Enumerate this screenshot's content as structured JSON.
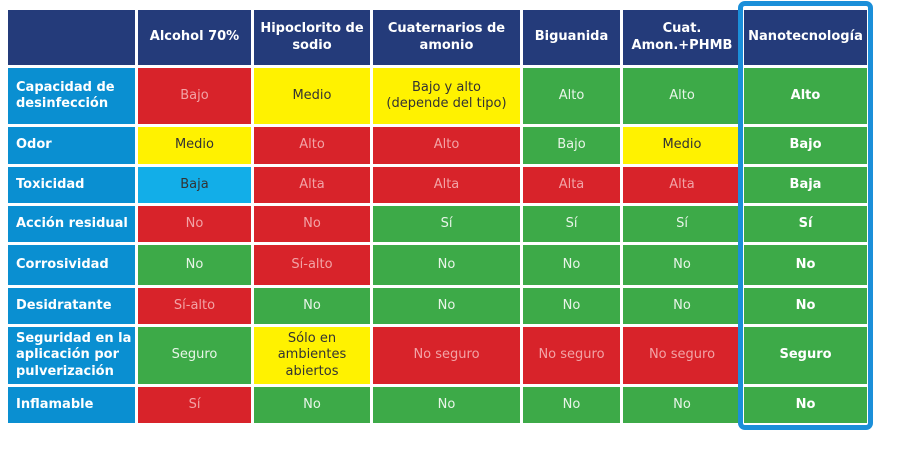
{
  "colors": {
    "header": "#243b7a",
    "row_label": "#0a8fd1",
    "red": "#d8232a",
    "green": "#3daa48",
    "yellow": "#fff200",
    "blue": "#12aee8",
    "nano_frame": "#1b8fd9"
  },
  "columns": [
    "Alcohol 70%",
    "Hipoclorito de sodio",
    "Cuaternarios de amonio",
    "Biguanida",
    "Cuat. Amon.+PHMB",
    "Nanotecnología"
  ],
  "rows": [
    {
      "label": "Capacidad de desinfección",
      "cells": [
        {
          "text": "Bajo",
          "color": "red"
        },
        {
          "text": "Medio",
          "color": "yellow"
        },
        {
          "text": "Bajo y alto (depende del tipo)",
          "color": "yellow"
        },
        {
          "text": "Alto",
          "color": "green"
        },
        {
          "text": "Alto",
          "color": "green"
        },
        {
          "text": "Alto",
          "color": "green"
        }
      ]
    },
    {
      "label": "Odor",
      "cells": [
        {
          "text": "Medio",
          "color": "yellow"
        },
        {
          "text": "Alto",
          "color": "red"
        },
        {
          "text": "Alto",
          "color": "red"
        },
        {
          "text": "Bajo",
          "color": "green"
        },
        {
          "text": "Medio",
          "color": "yellow"
        },
        {
          "text": "Bajo",
          "color": "green"
        }
      ]
    },
    {
      "label": "Toxicidad",
      "cells": [
        {
          "text": "Baja",
          "color": "blue"
        },
        {
          "text": "Alta",
          "color": "red"
        },
        {
          "text": "Alta",
          "color": "red"
        },
        {
          "text": "Alta",
          "color": "red"
        },
        {
          "text": "Alta",
          "color": "red"
        },
        {
          "text": "Baja",
          "color": "green"
        }
      ]
    },
    {
      "label": "Acción residual",
      "cells": [
        {
          "text": "No",
          "color": "red"
        },
        {
          "text": "No",
          "color": "red"
        },
        {
          "text": "Sí",
          "color": "green"
        },
        {
          "text": "Sí",
          "color": "green"
        },
        {
          "text": "Sí",
          "color": "green"
        },
        {
          "text": "Sí",
          "color": "green"
        }
      ]
    },
    {
      "label": "Corrosividad",
      "cells": [
        {
          "text": "No",
          "color": "green"
        },
        {
          "text": "Sí-alto",
          "color": "red"
        },
        {
          "text": "No",
          "color": "green"
        },
        {
          "text": "No",
          "color": "green"
        },
        {
          "text": "No",
          "color": "green"
        },
        {
          "text": "No",
          "color": "green"
        }
      ]
    },
    {
      "label": "Desidratante",
      "cells": [
        {
          "text": "Sí-alto",
          "color": "red"
        },
        {
          "text": "No",
          "color": "green"
        },
        {
          "text": "No",
          "color": "green"
        },
        {
          "text": "No",
          "color": "green"
        },
        {
          "text": "No",
          "color": "green"
        },
        {
          "text": "No",
          "color": "green"
        }
      ]
    },
    {
      "label": "Seguridad en la aplicación por pulverización",
      "cells": [
        {
          "text": "Seguro",
          "color": "green"
        },
        {
          "text": "Sólo en ambientes abiertos",
          "color": "yellow"
        },
        {
          "text": "No seguro",
          "color": "red"
        },
        {
          "text": "No seguro",
          "color": "red"
        },
        {
          "text": "No seguro",
          "color": "red"
        },
        {
          "text": "Seguro",
          "color": "green"
        }
      ]
    },
    {
      "label": "Inflamable",
      "cells": [
        {
          "text": "Sí",
          "color": "red"
        },
        {
          "text": "No",
          "color": "green"
        },
        {
          "text": "No",
          "color": "green"
        },
        {
          "text": "No",
          "color": "green"
        },
        {
          "text": "No",
          "color": "green"
        },
        {
          "text": "No",
          "color": "green"
        }
      ]
    }
  ]
}
